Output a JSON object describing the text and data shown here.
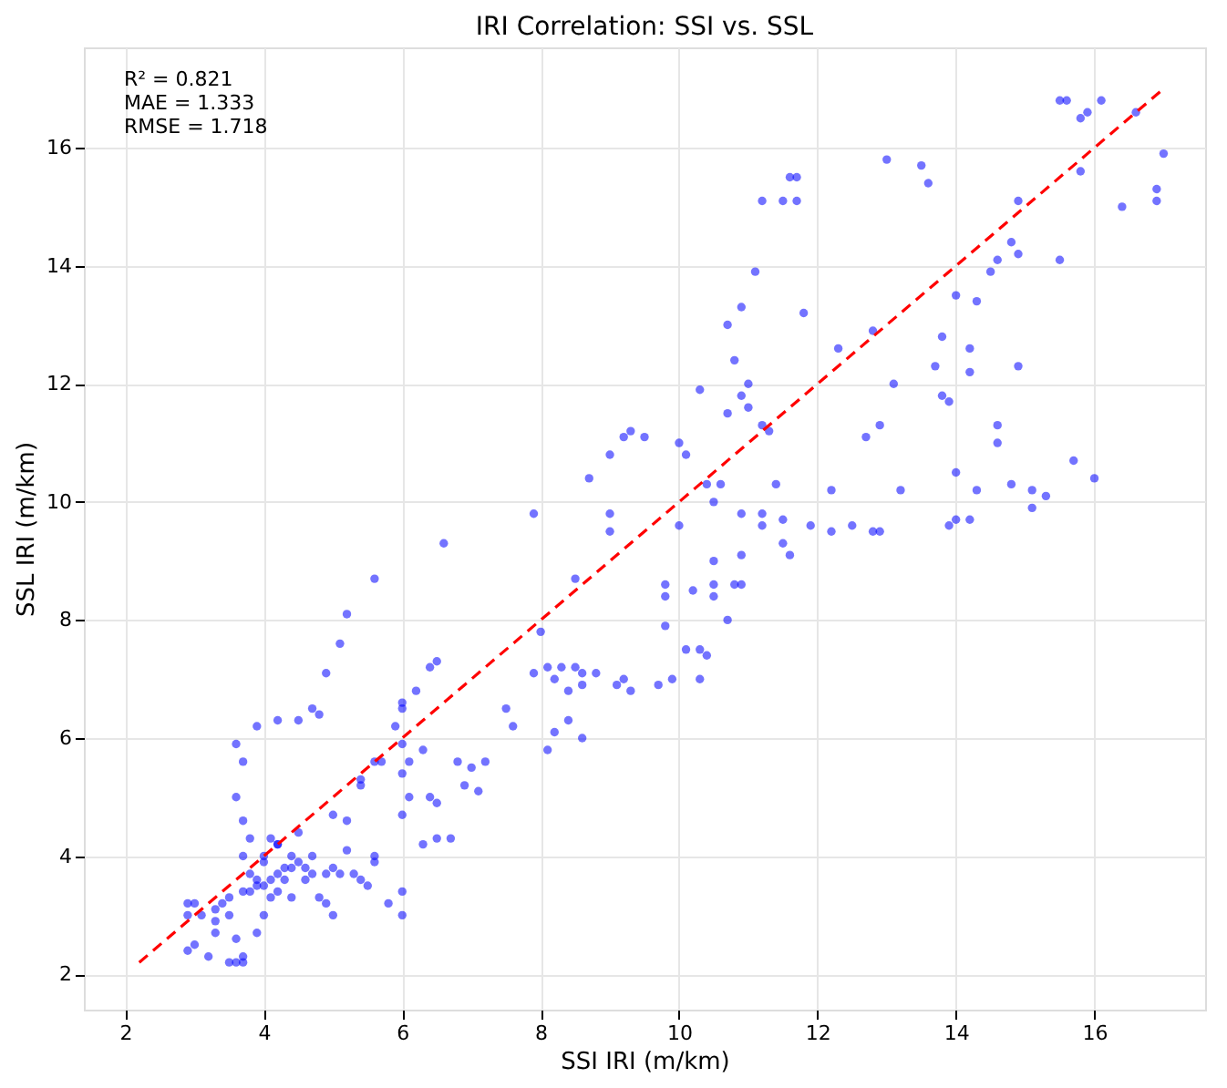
{
  "chart_data": {
    "type": "scatter",
    "title": "IRI Correlation: SSI vs. SSL",
    "xlabel": "SSI IRI (m/km)",
    "ylabel": "SSL IRI (m/km)",
    "xlim": [
      1.4,
      17.6
    ],
    "ylim": [
      1.4,
      17.7
    ],
    "xticks": [
      2,
      4,
      6,
      8,
      10,
      12,
      14,
      16
    ],
    "yticks": [
      2,
      4,
      6,
      8,
      10,
      12,
      14,
      16
    ],
    "grid": true,
    "annotations": [
      "R² = 0.821",
      "MAE = 1.333",
      "RMSE = 1.718"
    ],
    "series": [
      {
        "marker": "circle",
        "color": "#0000ff",
        "x": [
          15.5,
          15.6,
          15.8,
          15.9,
          16.1,
          16.6,
          17.0,
          16.9,
          16.9,
          16.4,
          15.8,
          15.5,
          14.9,
          14.8,
          14.9,
          14.6,
          14.5,
          14.0,
          14.3,
          13.5,
          13.6,
          13.0,
          13.8,
          14.2,
          14.2,
          13.7,
          13.8,
          13.9,
          14.6,
          14.6,
          14.9,
          15.7,
          16.0,
          15.1,
          15.3,
          15.1,
          14.8,
          14.3,
          14.0,
          14.0,
          13.9,
          14.2,
          13.2,
          12.9,
          12.7,
          12.2,
          12.5,
          12.8,
          12.9,
          12.2,
          11.9,
          13.1,
          12.8,
          12.3,
          11.7,
          11.6,
          11.5,
          11.7,
          11.2,
          11.1,
          10.9,
          10.7,
          10.8,
          11.8,
          11.0,
          10.9,
          11.0,
          11.2,
          11.3,
          10.7,
          10.3,
          10.0,
          9.2,
          9.3,
          9.5,
          9.0,
          8.7,
          9.0,
          9.0,
          10.1,
          10.4,
          10.6,
          10.5,
          11.4,
          11.5,
          11.5,
          10.9,
          11.2,
          11.6,
          11.2,
          10.9,
          10.5,
          10.0,
          10.5,
          10.5,
          10.8,
          10.2,
          9.8,
          9.8,
          9.8,
          10.4,
          10.7,
          10.9,
          10.3,
          10.3,
          9.9,
          9.7,
          9.3,
          9.2,
          10.1,
          8.5,
          7.9,
          6.6,
          5.6,
          5.2,
          8.5,
          8.3,
          8.6,
          8.6,
          8.8,
          8.4,
          8.1,
          8.0,
          7.9,
          8.2,
          9.1,
          7.5,
          7.6,
          8.2,
          8.4,
          8.6,
          8.1,
          7.2,
          7.1,
          7.0,
          6.8,
          6.9,
          6.5,
          6.4,
          6.2,
          6.0,
          6.0,
          5.9,
          6.3,
          6.0,
          6.1,
          6.0,
          6.1,
          6.4,
          6.5,
          6.0,
          6.5,
          6.3,
          6.7,
          6.0,
          6.0,
          5.8,
          5.6,
          5.7,
          5.4,
          5.4,
          5.2,
          5.6,
          5.6,
          5.4,
          5.0,
          5.0,
          5.2,
          3.6,
          3.7,
          3.9,
          3.6,
          3.7,
          3.8,
          3.7,
          4.2,
          4.0,
          4.1,
          4.2,
          4.5,
          4.7,
          4.8,
          4.9,
          5.1,
          4.7,
          4.5,
          4.4,
          4.5,
          4.4,
          4.3,
          4.6,
          4.7,
          4.6,
          4.9,
          5.0,
          5.1,
          4.3,
          4.2,
          4.1,
          4.0,
          3.9,
          3.8,
          3.7,
          3.5,
          3.4,
          3.3,
          3.1,
          3.0,
          2.9,
          2.9,
          3.0,
          2.9,
          3.3,
          3.2,
          3.5,
          3.6,
          3.7,
          3.7,
          3.6,
          3.9,
          4.0,
          3.3,
          4.4,
          4.1,
          4.8,
          5.5,
          5.3,
          4.9,
          4.0,
          4.2,
          3.8,
          3.9,
          3.5,
          4.2
        ],
        "values": [
          16.8,
          16.8,
          16.5,
          16.6,
          16.8,
          16.6,
          15.9,
          15.3,
          15.1,
          15.0,
          15.6,
          14.1,
          15.1,
          14.4,
          14.2,
          14.1,
          13.9,
          13.5,
          13.4,
          15.7,
          15.4,
          15.8,
          12.8,
          12.6,
          12.2,
          12.3,
          11.8,
          11.7,
          11.3,
          11.0,
          12.3,
          10.7,
          10.4,
          10.2,
          10.1,
          9.9,
          10.3,
          10.2,
          10.5,
          9.7,
          9.6,
          9.7,
          10.2,
          11.3,
          11.1,
          10.2,
          9.6,
          9.5,
          9.5,
          9.5,
          9.6,
          12.0,
          12.9,
          12.6,
          15.5,
          15.5,
          15.1,
          15.1,
          15.1,
          13.9,
          13.3,
          13.0,
          12.4,
          13.2,
          12.0,
          11.8,
          11.6,
          11.3,
          11.2,
          11.5,
          11.9,
          11.0,
          11.1,
          11.2,
          11.1,
          10.8,
          10.4,
          9.8,
          9.5,
          10.8,
          10.3,
          10.3,
          10.0,
          10.3,
          9.7,
          9.3,
          9.8,
          9.6,
          9.1,
          9.8,
          9.1,
          9.0,
          9.6,
          8.4,
          8.6,
          8.6,
          8.5,
          8.4,
          8.6,
          7.9,
          7.4,
          8.0,
          8.6,
          7.0,
          7.5,
          7.0,
          6.9,
          6.8,
          7.0,
          7.5,
          8.7,
          9.8,
          9.3,
          8.7,
          8.1,
          7.2,
          7.2,
          7.1,
          6.9,
          7.1,
          6.8,
          7.2,
          7.8,
          7.1,
          7.0,
          6.9,
          6.5,
          6.2,
          6.1,
          6.3,
          6.0,
          5.8,
          5.6,
          5.1,
          5.5,
          5.6,
          5.2,
          7.3,
          7.2,
          6.8,
          6.6,
          6.5,
          6.2,
          5.8,
          5.9,
          5.6,
          5.4,
          5.0,
          5.0,
          4.9,
          4.7,
          4.3,
          4.2,
          4.3,
          3.4,
          3.0,
          3.2,
          5.6,
          5.6,
          5.3,
          5.2,
          4.6,
          4.0,
          3.9,
          3.6,
          3.0,
          4.7,
          4.1,
          5.9,
          5.6,
          6.2,
          5.0,
          4.6,
          4.3,
          4.0,
          6.3,
          4.0,
          4.3,
          4.2,
          6.3,
          6.5,
          6.4,
          7.1,
          7.6,
          4.0,
          4.4,
          4.0,
          3.9,
          3.8,
          3.8,
          3.8,
          3.7,
          3.6,
          3.7,
          3.8,
          3.7,
          3.6,
          3.7,
          3.6,
          3.5,
          3.5,
          3.4,
          3.4,
          3.3,
          3.2,
          3.1,
          3.0,
          3.2,
          3.2,
          3.0,
          2.5,
          2.4,
          2.7,
          2.3,
          2.2,
          2.2,
          2.2,
          2.3,
          2.6,
          2.7,
          3.0,
          2.9,
          3.3,
          3.3,
          3.3,
          3.5,
          3.7,
          3.2,
          3.9,
          4.2,
          3.7,
          3.6,
          3.0,
          3.4
        ]
      },
      {
        "type": "line",
        "color": "#ff0000",
        "line_style": "dashed",
        "x": [
          2.2,
          17.0
        ],
        "values": [
          2.2,
          17.0
        ]
      }
    ]
  }
}
